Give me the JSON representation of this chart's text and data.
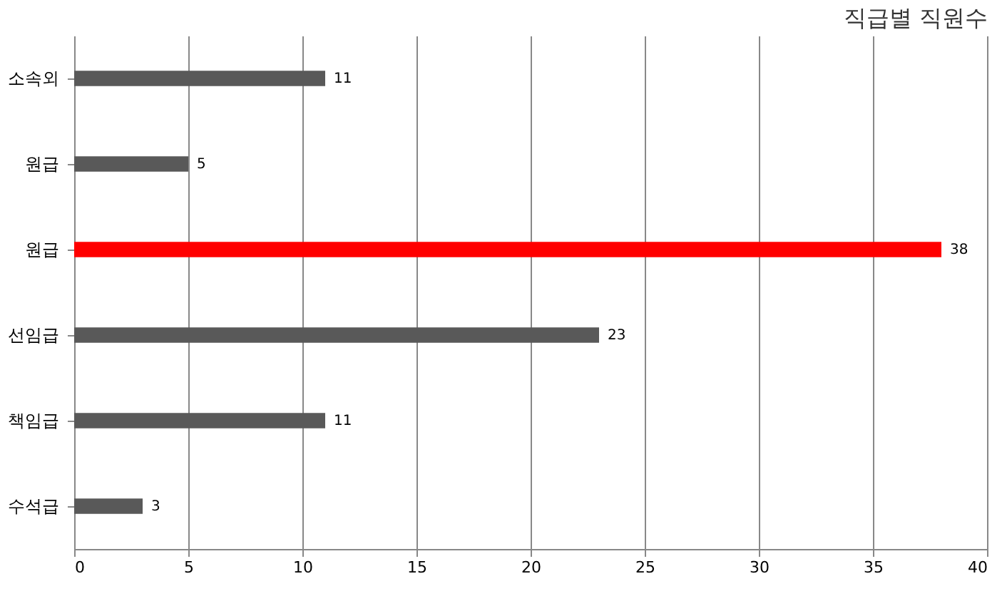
{
  "chart_data": {
    "type": "bar",
    "orientation": "horizontal",
    "title": "직급별 직원수",
    "categories": [
      "소속외",
      "원급",
      "원급",
      "선임급",
      "책임급",
      "수석급"
    ],
    "values": [
      11,
      5,
      38,
      23,
      11,
      3
    ],
    "colors": [
      "#595959",
      "#595959",
      "#ff0000",
      "#595959",
      "#595959",
      "#595959"
    ],
    "xlim": [
      0,
      40
    ],
    "xticks": [
      0,
      5,
      10,
      15,
      20,
      25,
      30,
      35,
      40
    ],
    "grid": "x",
    "data_labels": true
  }
}
